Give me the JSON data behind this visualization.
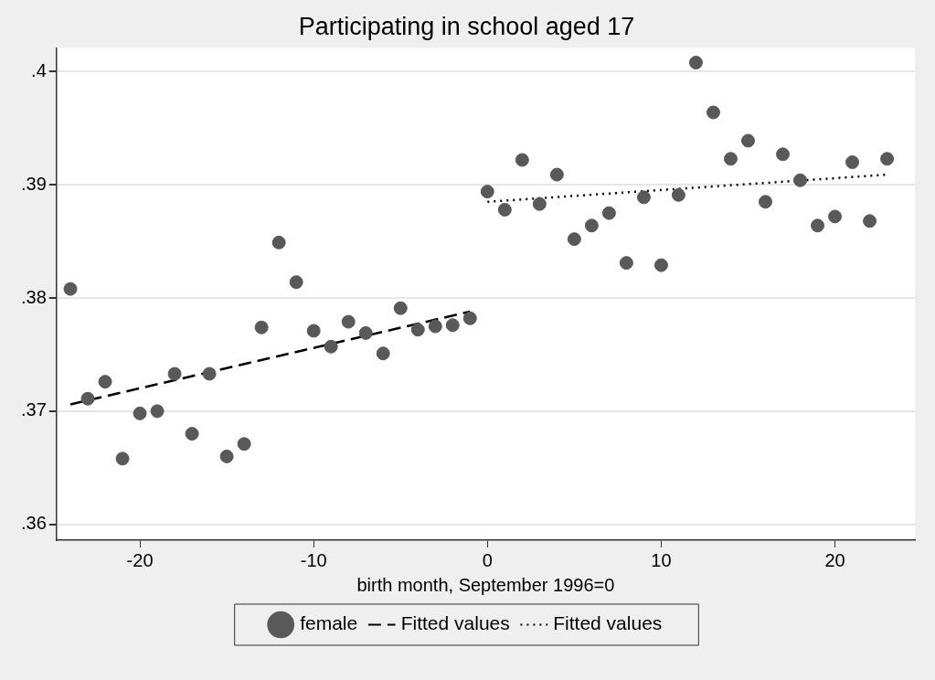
{
  "chart_data": {
    "type": "scatter",
    "title": "Participating in school aged 17",
    "xlabel": "birth month, September 1996=0",
    "xlim": [
      -24.8,
      24.6
    ],
    "xticks": [
      -20,
      -10,
      0,
      10,
      20
    ],
    "ylim": [
      0.3586,
      0.4021
    ],
    "yticks": [
      {
        "value": 0.36,
        "label": ".36"
      },
      {
        "value": 0.37,
        "label": ".37"
      },
      {
        "value": 0.38,
        "label": ".38"
      },
      {
        "value": 0.39,
        "label": ".39"
      },
      {
        "value": 0.4,
        "label": ".4"
      }
    ],
    "grid": "y",
    "legend": "bottom",
    "series": [
      {
        "name": "female",
        "color": "#595959",
        "marker": "circle",
        "x": [
          -24,
          -23,
          -22,
          -21,
          -20,
          -19,
          -18,
          -17,
          -16,
          -15,
          -14,
          -13,
          -12,
          -11,
          -10,
          -9,
          -8,
          -7,
          -6,
          -5,
          -4,
          -3,
          -2,
          -1,
          0,
          1,
          2,
          3,
          4,
          5,
          6,
          7,
          8,
          9,
          10,
          11,
          12,
          13,
          14,
          15,
          16,
          17,
          18,
          19,
          20,
          21,
          22,
          23
        ],
        "values": [
          0.3808,
          0.3711,
          0.3726,
          0.3658,
          0.3698,
          0.37,
          0.3733,
          0.368,
          0.3733,
          0.366,
          0.3671,
          0.3774,
          0.3849,
          0.3814,
          0.3771,
          0.3757,
          0.3779,
          0.3769,
          0.3751,
          0.3791,
          0.3772,
          0.3775,
          0.3776,
          0.3782,
          0.3894,
          0.3878,
          0.3922,
          0.3883,
          0.3909,
          0.3852,
          0.3864,
          0.3875,
          0.3831,
          0.3889,
          0.3829,
          0.3891,
          0.4008,
          0.3964,
          0.3923,
          0.3939,
          0.3885,
          0.3927,
          0.3904,
          0.3864,
          0.3872,
          0.392,
          0.3868,
          0.3923
        ]
      },
      {
        "name": "Fitted values",
        "type": "line",
        "color": "#000000",
        "line_style": "dashed",
        "marker": "none",
        "x": [
          -24,
          -1
        ],
        "values": [
          0.3706,
          0.3788
        ]
      },
      {
        "name": "Fitted values",
        "type": "line",
        "color": "#000000",
        "line_style": "dotted",
        "marker": "none",
        "x": [
          0,
          23
        ],
        "values": [
          0.3885,
          0.3909
        ]
      }
    ]
  }
}
